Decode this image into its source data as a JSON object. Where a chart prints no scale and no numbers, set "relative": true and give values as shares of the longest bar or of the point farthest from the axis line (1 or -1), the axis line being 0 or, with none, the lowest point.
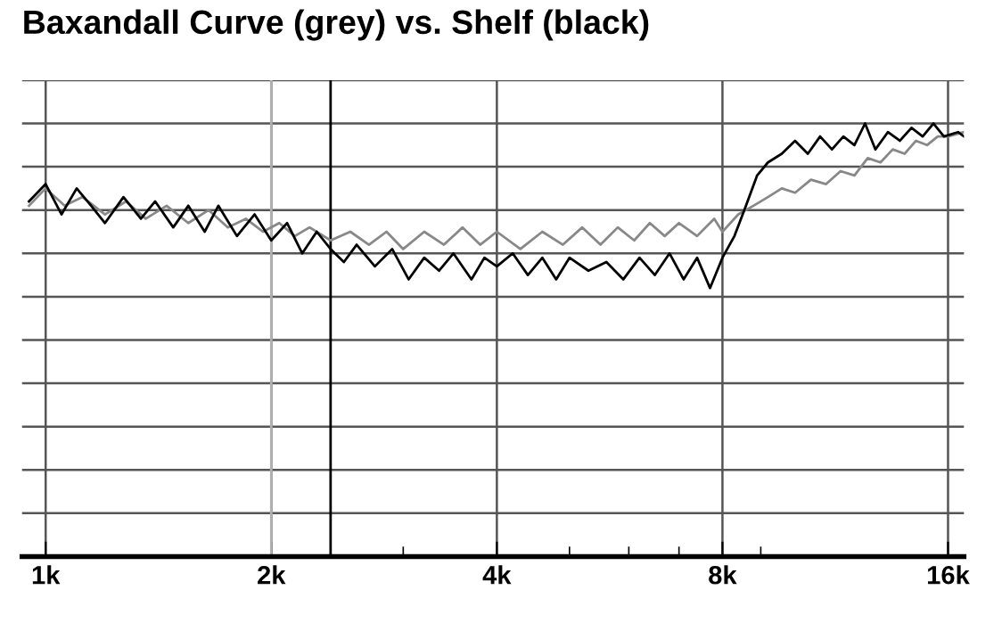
{
  "chart_data": {
    "type": "line",
    "title": "Baxandall Curve (grey) vs. Shelf (black)",
    "relative": true,
    "log": "x",
    "grid": true,
    "xlim": [
      930,
      16800
    ],
    "xticks": [
      {
        "value": 1000,
        "label": "1k"
      },
      {
        "value": 2000,
        "label": "2k"
      },
      {
        "value": 4000,
        "label": "4k"
      },
      {
        "value": 8000,
        "label": "8k"
      },
      {
        "value": 16000,
        "label": "16k"
      }
    ],
    "ref_lines": [
      {
        "axis": "x",
        "value": 2000,
        "color": "#b0b0b0"
      },
      {
        "axis": "x",
        "value": 2400,
        "color": "#000000"
      }
    ],
    "series": [
      {
        "color": "#888888",
        "x": [
          950,
          1000,
          1060,
          1120,
          1200,
          1280,
          1360,
          1450,
          1550,
          1650,
          1750,
          1850,
          1950,
          2050,
          2150,
          2250,
          2400,
          2550,
          2700,
          2850,
          3000,
          3200,
          3400,
          3600,
          3800,
          4000,
          4300,
          4600,
          4900,
          5200,
          5500,
          5800,
          6100,
          6400,
          6700,
          7000,
          7400,
          7800,
          8000,
          8400,
          8800,
          9200,
          9600,
          10000,
          10500,
          11000,
          11500,
          12000,
          12500,
          13000,
          13500,
          14000,
          14500,
          15000,
          15500,
          16000,
          16800
        ],
        "values": [
          0.81,
          0.85,
          0.81,
          0.83,
          0.79,
          0.82,
          0.78,
          0.81,
          0.77,
          0.8,
          0.76,
          0.78,
          0.75,
          0.77,
          0.74,
          0.76,
          0.73,
          0.75,
          0.72,
          0.75,
          0.71,
          0.75,
          0.72,
          0.76,
          0.72,
          0.75,
          0.71,
          0.75,
          0.72,
          0.76,
          0.72,
          0.76,
          0.73,
          0.77,
          0.74,
          0.77,
          0.74,
          0.78,
          0.75,
          0.79,
          0.81,
          0.83,
          0.85,
          0.84,
          0.87,
          0.86,
          0.89,
          0.88,
          0.92,
          0.91,
          0.94,
          0.93,
          0.96,
          0.95,
          0.97,
          0.97,
          0.98
        ]
      },
      {
        "color": "#000000",
        "x": [
          950,
          1000,
          1050,
          1100,
          1150,
          1200,
          1270,
          1340,
          1400,
          1480,
          1550,
          1630,
          1700,
          1800,
          1900,
          2000,
          2100,
          2200,
          2300,
          2400,
          2500,
          2600,
          2750,
          2900,
          3050,
          3200,
          3350,
          3500,
          3700,
          3850,
          4000,
          4200,
          4400,
          4600,
          4800,
          5000,
          5300,
          5600,
          5900,
          6200,
          6500,
          6800,
          7100,
          7400,
          7700,
          8000,
          8300,
          8600,
          8900,
          9200,
          9600,
          10000,
          10400,
          10800,
          11200,
          11600,
          12000,
          12400,
          12800,
          13300,
          13800,
          14300,
          14800,
          15300,
          15800,
          16500,
          16800
        ],
        "values": [
          0.82,
          0.86,
          0.79,
          0.85,
          0.81,
          0.77,
          0.83,
          0.78,
          0.82,
          0.76,
          0.81,
          0.75,
          0.81,
          0.74,
          0.79,
          0.73,
          0.77,
          0.7,
          0.75,
          0.71,
          0.68,
          0.72,
          0.67,
          0.71,
          0.64,
          0.69,
          0.66,
          0.7,
          0.64,
          0.69,
          0.67,
          0.7,
          0.65,
          0.69,
          0.64,
          0.69,
          0.66,
          0.68,
          0.64,
          0.69,
          0.65,
          0.7,
          0.64,
          0.69,
          0.62,
          0.69,
          0.74,
          0.81,
          0.88,
          0.91,
          0.93,
          0.96,
          0.93,
          0.97,
          0.94,
          0.97,
          0.95,
          1,
          0.94,
          0.98,
          0.96,
          0.99,
          0.97,
          1,
          0.97,
          0.98,
          0.97
        ]
      }
    ]
  }
}
